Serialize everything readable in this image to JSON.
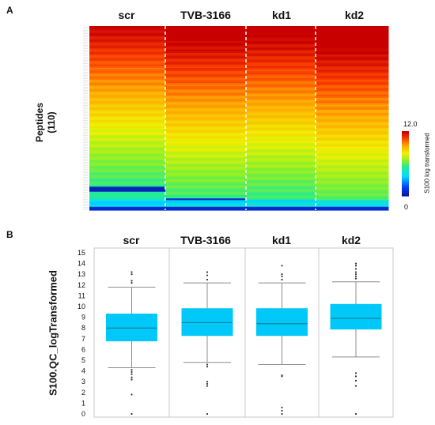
{
  "panel_a": {
    "label": "A",
    "y_label_line1": "Peptides",
    "y_label_line2": "(110)",
    "colorbar_max": "12.0",
    "colorbar_min": "0",
    "colorbar_label": "S100 log transformed"
  },
  "panel_b": {
    "label": "B"
  },
  "colors": {
    "box_fill": "#00c8f8",
    "whisker": "#8c8c8c",
    "outlier": "#333333",
    "separator": "#ffffff",
    "low": "#0a1aa0",
    "high": "#c80000"
  },
  "chart_data": [
    {
      "type": "heatmap",
      "title": "",
      "categories": [
        "scr",
        "TVB-3166",
        "kd1",
        "kd2"
      ],
      "ylabel": "Peptides (110)",
      "rows": 110,
      "value_range": [
        0,
        12.0
      ],
      "colorbar_label": "S100 log transformed"
    },
    {
      "type": "box",
      "title": "",
      "categories": [
        "scr",
        "TVB-3166",
        "kd1",
        "kd2"
      ],
      "ylabel": "S100.QC_logTransformed",
      "ylim": [
        0,
        15
      ],
      "yticks": [
        0,
        1,
        2,
        3,
        4,
        5,
        6,
        7,
        8,
        9,
        10,
        11,
        12,
        13,
        14,
        15
      ],
      "boxes": [
        {
          "name": "scr",
          "whisker_low": 4.3,
          "q1": 6.8,
          "median": 8.0,
          "q3": 9.3,
          "whisker_high": 11.8,
          "outliers": [
            13.2,
            13.0,
            12.4,
            12.2,
            4.1,
            3.9,
            3.7,
            3.4,
            3.2,
            1.8,
            0.0
          ]
        },
        {
          "name": "TVB-3166",
          "whisker_low": 4.8,
          "q1": 7.3,
          "median": 8.5,
          "q3": 9.8,
          "whisker_high": 12.2,
          "outliers": [
            13.2,
            12.9,
            12.5,
            4.6,
            4.4,
            3.0,
            2.8,
            2.6,
            0.0
          ]
        },
        {
          "name": "kd1",
          "whisker_low": 4.6,
          "q1": 7.3,
          "median": 8.4,
          "q3": 9.8,
          "whisker_high": 12.2,
          "outliers": [
            13.8,
            13.0,
            12.8,
            12.5,
            3.6,
            3.5,
            0.6,
            0.3,
            0.0
          ]
        },
        {
          "name": "kd2",
          "whisker_low": 5.3,
          "q1": 7.9,
          "median": 8.9,
          "q3": 10.2,
          "whisker_high": 12.3,
          "outliers": [
            14.0,
            13.8,
            13.5,
            13.2,
            13.0,
            12.8,
            12.6,
            3.8,
            3.5,
            3.1,
            2.6,
            0.0
          ]
        }
      ]
    }
  ]
}
